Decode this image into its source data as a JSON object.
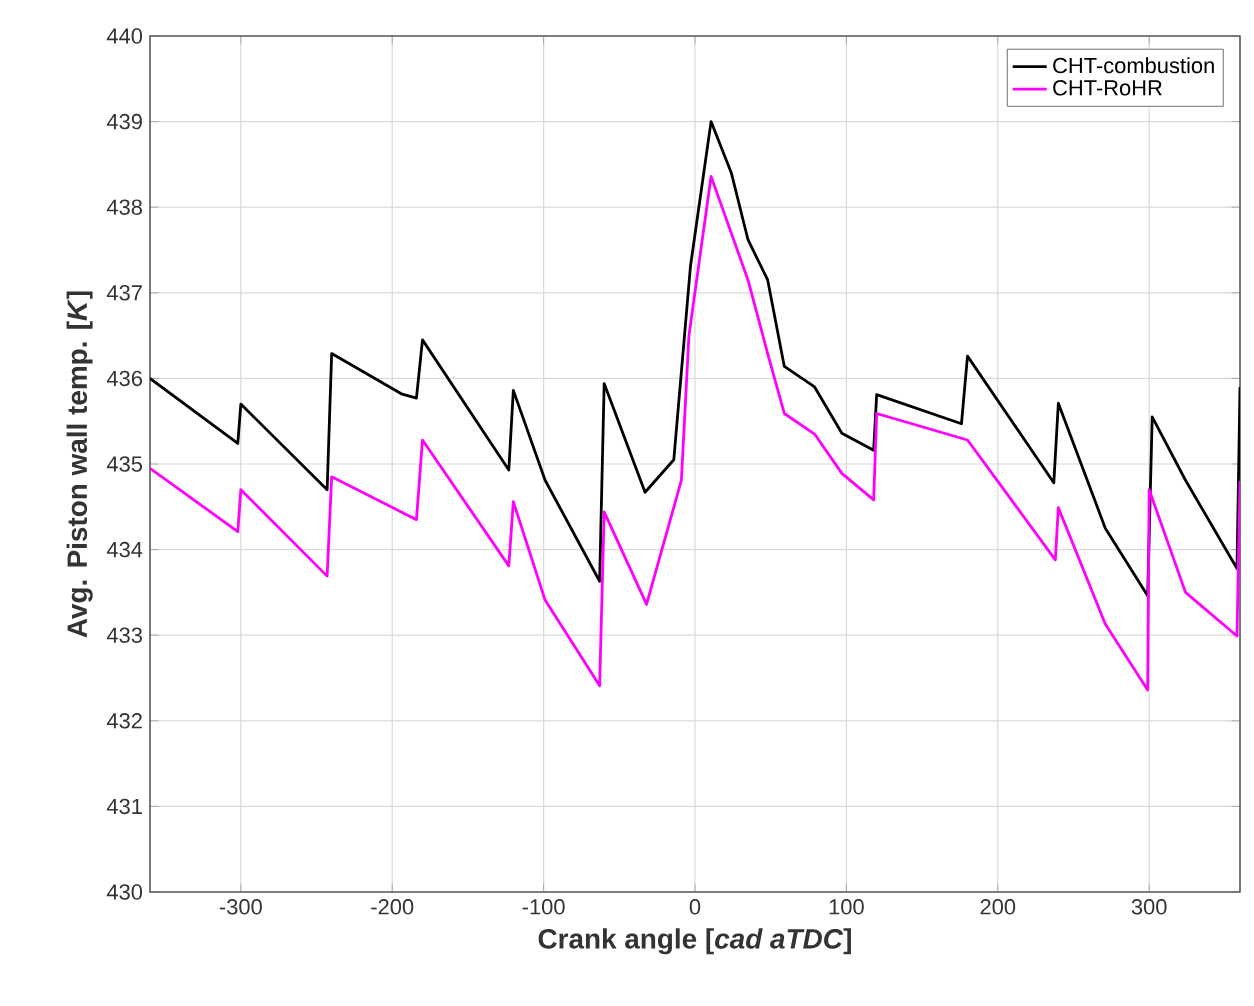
{
  "chart_data": {
    "type": "line",
    "xlabel": "Crank angle [*cad aTDC*]",
    "ylabel": "Avg. Piston wall temp. [*K*]",
    "xlim": [
      -360,
      360
    ],
    "ylim": [
      430,
      440
    ],
    "xticks": [
      -300,
      -200,
      -100,
      0,
      100,
      200,
      300
    ],
    "yticks": [
      430,
      431,
      432,
      433,
      434,
      435,
      436,
      437,
      438,
      439,
      440
    ],
    "grid": true,
    "legend": "top right",
    "marker": "none",
    "line_style": "solid",
    "series": [
      {
        "name": "CHT-combustion",
        "color": "#000000",
        "x": [
          -360,
          -302,
          -300,
          -243,
          -240,
          -194,
          -184,
          -180,
          -123,
          -120,
          -99,
          -63,
          -60,
          -33,
          -14,
          -3,
          10.6,
          24,
          35,
          48,
          59,
          79,
          97,
          118,
          120,
          176,
          180,
          237,
          240,
          271,
          299,
          302,
          324,
          358,
          360
        ],
        "values": [
          436.0,
          435.24,
          435.7,
          434.7,
          436.29,
          435.82,
          435.77,
          436.45,
          434.93,
          435.86,
          434.81,
          433.63,
          435.94,
          434.67,
          435.05,
          437.31,
          439.0,
          438.4,
          437.62,
          437.15,
          436.14,
          435.9,
          435.36,
          435.16,
          435.81,
          435.47,
          436.26,
          434.78,
          435.71,
          434.25,
          433.46,
          435.55,
          434.81,
          433.78,
          435.9
        ]
      },
      {
        "name": "CHT-RoHR",
        "color": "#ff00ff",
        "x": [
          -360,
          -302,
          -300,
          -243,
          -240,
          -184,
          -180,
          -123,
          -120,
          -99,
          -63,
          -60,
          -32,
          -9,
          -4,
          10.6,
          35,
          48,
          59,
          79,
          97,
          118,
          120,
          180,
          238,
          240,
          271,
          299,
          300,
          324,
          358,
          360
        ],
        "values": [
          434.95,
          434.21,
          434.7,
          433.69,
          434.85,
          434.35,
          435.28,
          433.81,
          434.56,
          433.41,
          432.41,
          434.44,
          433.36,
          434.81,
          436.5,
          438.36,
          437.15,
          436.29,
          435.59,
          435.35,
          434.89,
          434.58,
          435.59,
          435.28,
          433.88,
          434.49,
          433.13,
          432.36,
          434.7,
          433.5,
          432.99,
          434.8
        ]
      }
    ]
  }
}
